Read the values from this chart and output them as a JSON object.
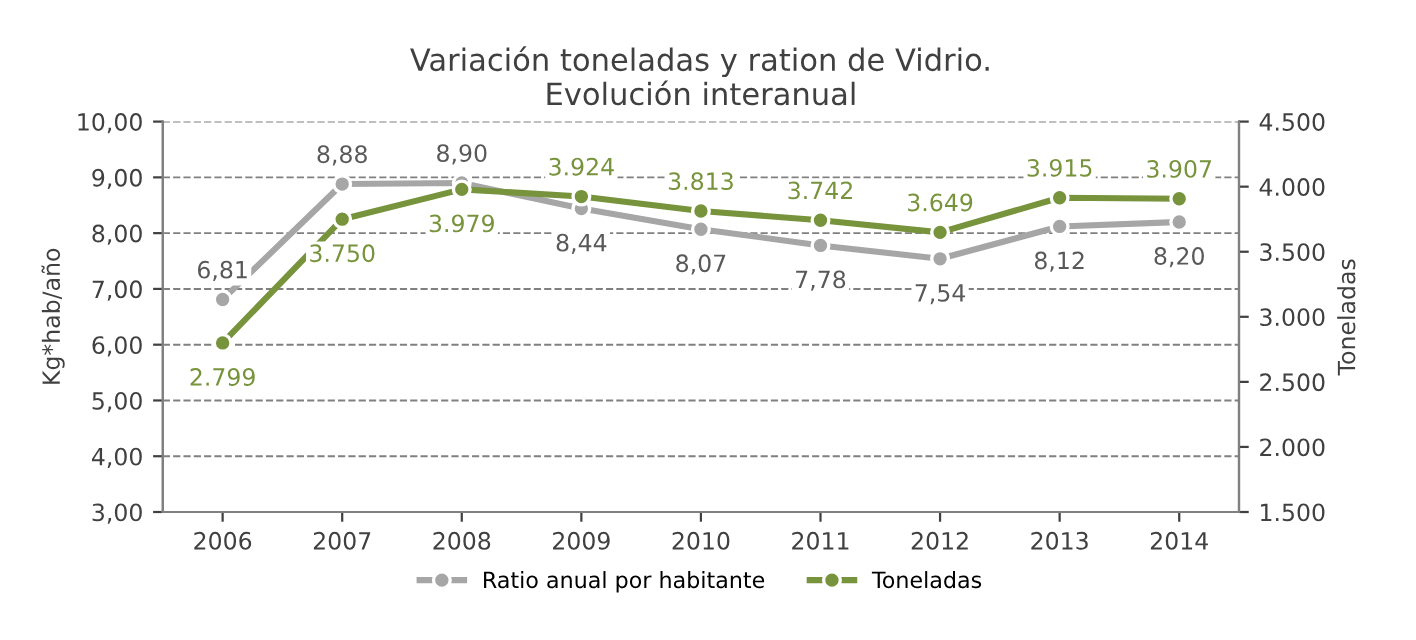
{
  "chart_data": {
    "type": "line",
    "title": "Variación toneladas y ration de Vidrio.\nEvolución interanual",
    "ylabel": "Kg*hab/año",
    "y2label": "Toneladas",
    "categories": [
      "2006",
      "2007",
      "2008",
      "2009",
      "2010",
      "2011",
      "2012",
      "2013",
      "2014"
    ],
    "series": [
      {
        "name": "Ratio anual por habitante",
        "color": "#a6a6a6",
        "values": [
          6.81,
          8.88,
          8.9,
          8.44,
          8.07,
          7.78,
          7.54,
          8.12,
          8.2
        ],
        "value_labels": [
          "6,81",
          "8,88",
          "8,90",
          "8,44",
          "8,07",
          "7,78",
          "7,54",
          "8,12",
          "8,20"
        ]
      },
      {
        "name": "Toneladas",
        "color": "#77933c",
        "axis": "y2",
        "values": [
          2799,
          3750,
          3979,
          3924,
          3813,
          3742,
          3649,
          3915,
          3907
        ],
        "value_labels": [
          "2.799",
          "3.750",
          "3.979",
          "3.924",
          "3.813",
          "3.742",
          "3.649",
          "3.915",
          "3.907"
        ]
      }
    ],
    "ylim": [
      3,
      10
    ],
    "yticks": [
      {
        "value": 3,
        "label": "3,00"
      },
      {
        "value": 4,
        "label": "4,00"
      },
      {
        "value": 5,
        "label": "5,00"
      },
      {
        "value": 6,
        "label": "6,00"
      },
      {
        "value": 7,
        "label": "7,00"
      },
      {
        "value": 8,
        "label": "8,00"
      },
      {
        "value": 9,
        "label": "9,00"
      },
      {
        "value": 10,
        "label": "10,00"
      }
    ],
    "y2lim": [
      1500,
      4500
    ],
    "y2ticks": [
      {
        "value": 1500,
        "label": "1.500"
      },
      {
        "value": 2000,
        "label": "2.000"
      },
      {
        "value": 2500,
        "label": "2.500"
      },
      {
        "value": 3000,
        "label": "3.000"
      },
      {
        "value": 3500,
        "label": "3.500"
      },
      {
        "value": 4000,
        "label": "4.000"
      },
      {
        "value": 4500,
        "label": "4.500"
      }
    ],
    "grid": "y",
    "legend": "bottom",
    "marker": "circle",
    "line_style": "solid"
  }
}
